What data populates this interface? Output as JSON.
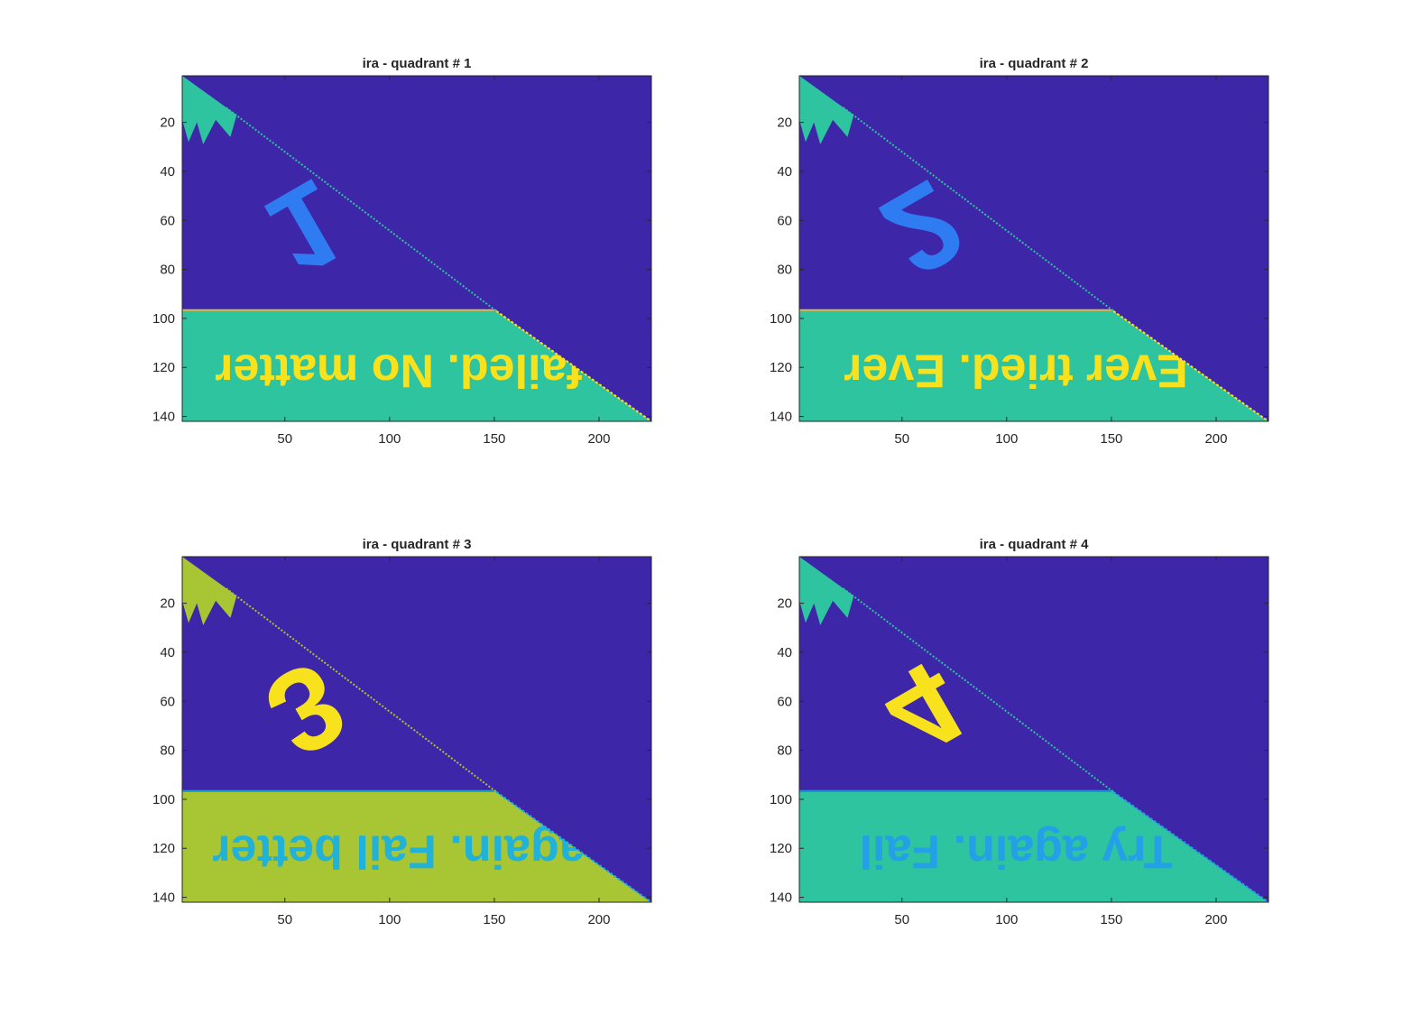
{
  "colors": {
    "background": "#3d26a8",
    "triangle_edge": "#2ec4a0",
    "band": "#2ec4a0",
    "band_q3": "#a8c634",
    "yellow": "#f8e21e",
    "blue_stroke": "#2f7cf2",
    "cyan_text": "#20b2d8",
    "azure_text": "#23a0e6"
  },
  "chart_data": [
    {
      "type": "heatmap",
      "title": "ira - quadrant # 1",
      "xlabel": "",
      "ylabel": "",
      "xlim": [
        1,
        225
      ],
      "ylim": [
        142,
        1
      ],
      "y_reversed": true,
      "xticks": [
        50,
        100,
        150,
        200
      ],
      "yticks": [
        20,
        40,
        60,
        80,
        100,
        120,
        140
      ],
      "annotations": [
        {
          "text": "1",
          "kind": "glyph"
        },
        {
          "text": "failed. No matter",
          "kind": "mirrored-text"
        }
      ]
    },
    {
      "type": "heatmap",
      "title": "ira - quadrant # 2",
      "xlabel": "",
      "ylabel": "",
      "xlim": [
        1,
        225
      ],
      "ylim": [
        142,
        1
      ],
      "y_reversed": true,
      "xticks": [
        50,
        100,
        150,
        200
      ],
      "yticks": [
        20,
        40,
        60,
        80,
        100,
        120,
        140
      ],
      "annotations": [
        {
          "text": "2",
          "kind": "glyph"
        },
        {
          "text": "Ever tried. Ever",
          "kind": "mirrored-text"
        }
      ]
    },
    {
      "type": "heatmap",
      "title": "ira - quadrant # 3",
      "xlabel": "",
      "ylabel": "",
      "xlim": [
        1,
        225
      ],
      "ylim": [
        142,
        1
      ],
      "y_reversed": true,
      "xticks": [
        50,
        100,
        150,
        200
      ],
      "yticks": [
        20,
        40,
        60,
        80,
        100,
        120,
        140
      ],
      "annotations": [
        {
          "text": "3",
          "kind": "glyph"
        },
        {
          "text": "again. Fail better",
          "kind": "mirrored-text"
        }
      ]
    },
    {
      "type": "heatmap",
      "title": "ira - quadrant # 4",
      "xlabel": "",
      "ylabel": "",
      "xlim": [
        1,
        225
      ],
      "ylim": [
        142,
        1
      ],
      "y_reversed": true,
      "xticks": [
        50,
        100,
        150,
        200
      ],
      "yticks": [
        20,
        40,
        60,
        80,
        100,
        120,
        140
      ],
      "annotations": [
        {
          "text": "4",
          "kind": "glyph"
        },
        {
          "text": "Try again. Fail",
          "kind": "mirrored-text"
        }
      ]
    }
  ]
}
